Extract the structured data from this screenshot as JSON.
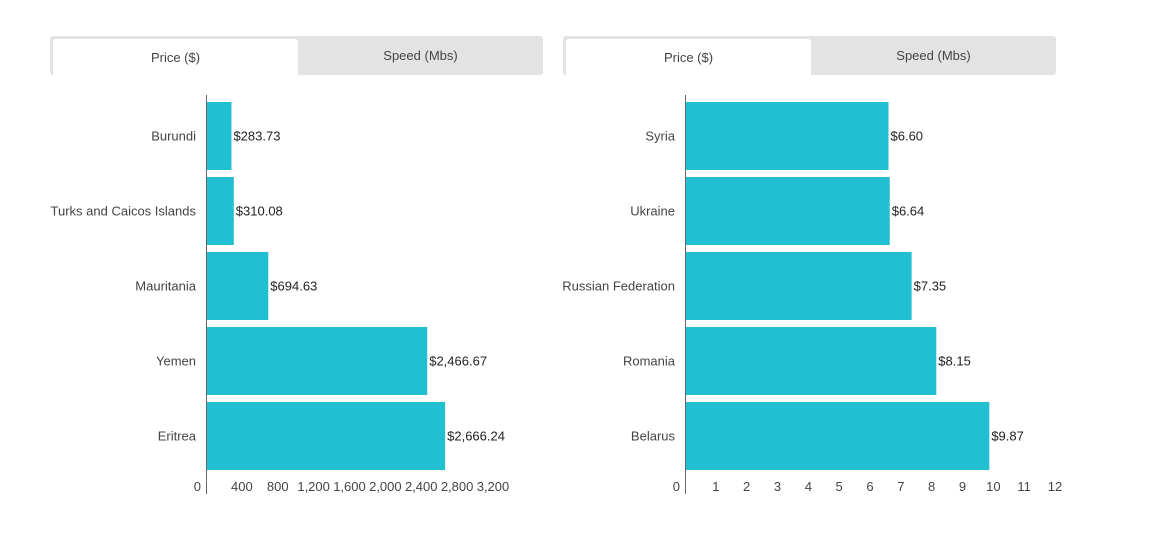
{
  "colors": {
    "bar": "#22bfd3",
    "axis": "#666666",
    "tab_bg": "#e3e3e3"
  },
  "panels": [
    {
      "tabs": [
        {
          "label": "Price ($)",
          "active": true
        },
        {
          "label": "Speed (Mbs)",
          "active": false
        }
      ]
    },
    {
      "tabs": [
        {
          "label": "Price ($)",
          "active": true
        },
        {
          "label": "Speed (Mbs)",
          "active": false
        }
      ]
    }
  ],
  "chart_data": [
    {
      "type": "bar",
      "orientation": "horizontal",
      "categories": [
        "Burundi",
        "Turks and Caicos Islands",
        "Mauritania",
        "Yemen",
        "Eritrea"
      ],
      "values": [
        283.73,
        310.08,
        694.63,
        2466.67,
        2666.24
      ],
      "value_labels": [
        "$283.73",
        "$310.08",
        "$694.63",
        "$2,466.67",
        "$2,666.24"
      ],
      "xlim": [
        0,
        3200
      ],
      "ticks": [
        0,
        400,
        800,
        1200,
        1600,
        2000,
        2400,
        2800,
        3200
      ],
      "tick_labels": [
        "0",
        "400",
        "800",
        "1,200",
        "1,600",
        "2,000",
        "2,400",
        "2,800",
        "3,200"
      ],
      "grid": false
    },
    {
      "type": "bar",
      "orientation": "horizontal",
      "categories": [
        "Syria",
        "Ukraine",
        "Russian Federation",
        "Romania",
        "Belarus"
      ],
      "values": [
        6.6,
        6.64,
        7.35,
        8.15,
        9.87
      ],
      "value_labels": [
        "$6.60",
        "$6.64",
        "$7.35",
        "$8.15",
        "$9.87"
      ],
      "xlim": [
        0,
        12
      ],
      "ticks": [
        0,
        1,
        2,
        3,
        4,
        5,
        6,
        7,
        8,
        9,
        10,
        11,
        12
      ],
      "tick_labels": [
        "0",
        "1",
        "2",
        "3",
        "4",
        "5",
        "6",
        "7",
        "8",
        "9",
        "10",
        "11",
        "12"
      ],
      "grid": false
    }
  ]
}
